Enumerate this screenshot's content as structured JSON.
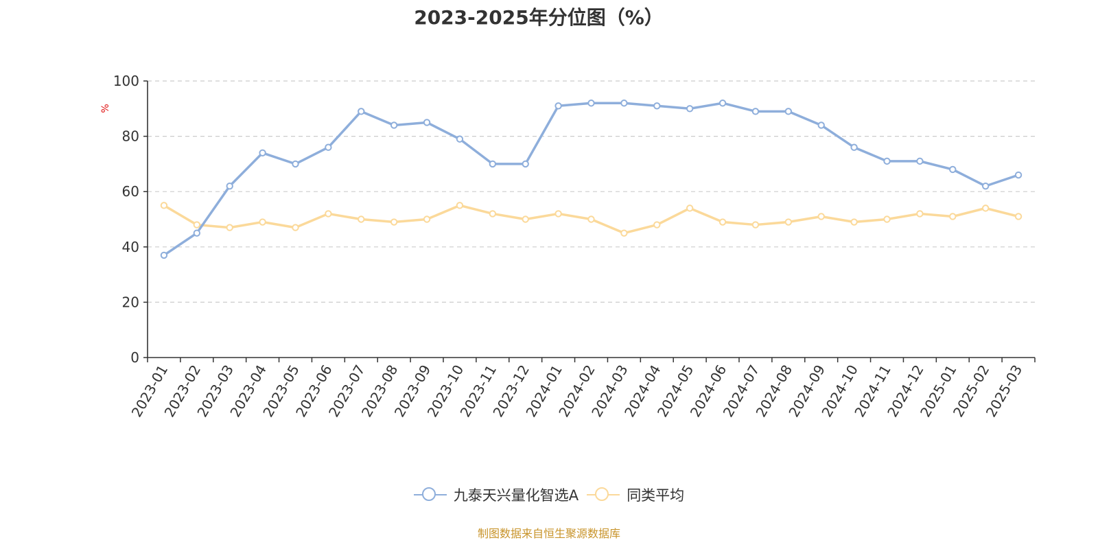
{
  "title": "2023-2025年分位图（%）",
  "source_note": "制图数据来自恒生聚源数据库",
  "chart_data": {
    "type": "line",
    "title": "2023-2025年分位图（%）",
    "ylabel": "%",
    "xlabel": "",
    "ylim": [
      0,
      100
    ],
    "yticks": [
      0,
      20,
      40,
      60,
      80,
      100
    ],
    "grid": true,
    "legend_position": "bottom",
    "categories": [
      "2023-01",
      "2023-02",
      "2023-03",
      "2023-04",
      "2023-05",
      "2023-06",
      "2023-07",
      "2023-08",
      "2023-09",
      "2023-10",
      "2023-11",
      "2023-12",
      "2024-01",
      "2024-02",
      "2024-03",
      "2024-04",
      "2024-05",
      "2024-06",
      "2024-07",
      "2024-08",
      "2024-09",
      "2024-10",
      "2024-11",
      "2024-12",
      "2025-01",
      "2025-02",
      "2025-03"
    ],
    "series": [
      {
        "name": "九泰天兴量化智选A",
        "color": "#8eaedb",
        "values": [
          37,
          45,
          62,
          74,
          70,
          76,
          89,
          84,
          85,
          79,
          70,
          70,
          91,
          92,
          92,
          91,
          90,
          92,
          89,
          89,
          84,
          76,
          71,
          71,
          68,
          62,
          66
        ]
      },
      {
        "name": "同类平均",
        "color": "#fbd99a",
        "values": [
          55,
          48,
          47,
          49,
          47,
          52,
          50,
          49,
          50,
          55,
          52,
          50,
          52,
          50,
          45,
          48,
          54,
          49,
          48,
          49,
          51,
          49,
          50,
          52,
          51,
          54,
          51
        ]
      }
    ]
  }
}
